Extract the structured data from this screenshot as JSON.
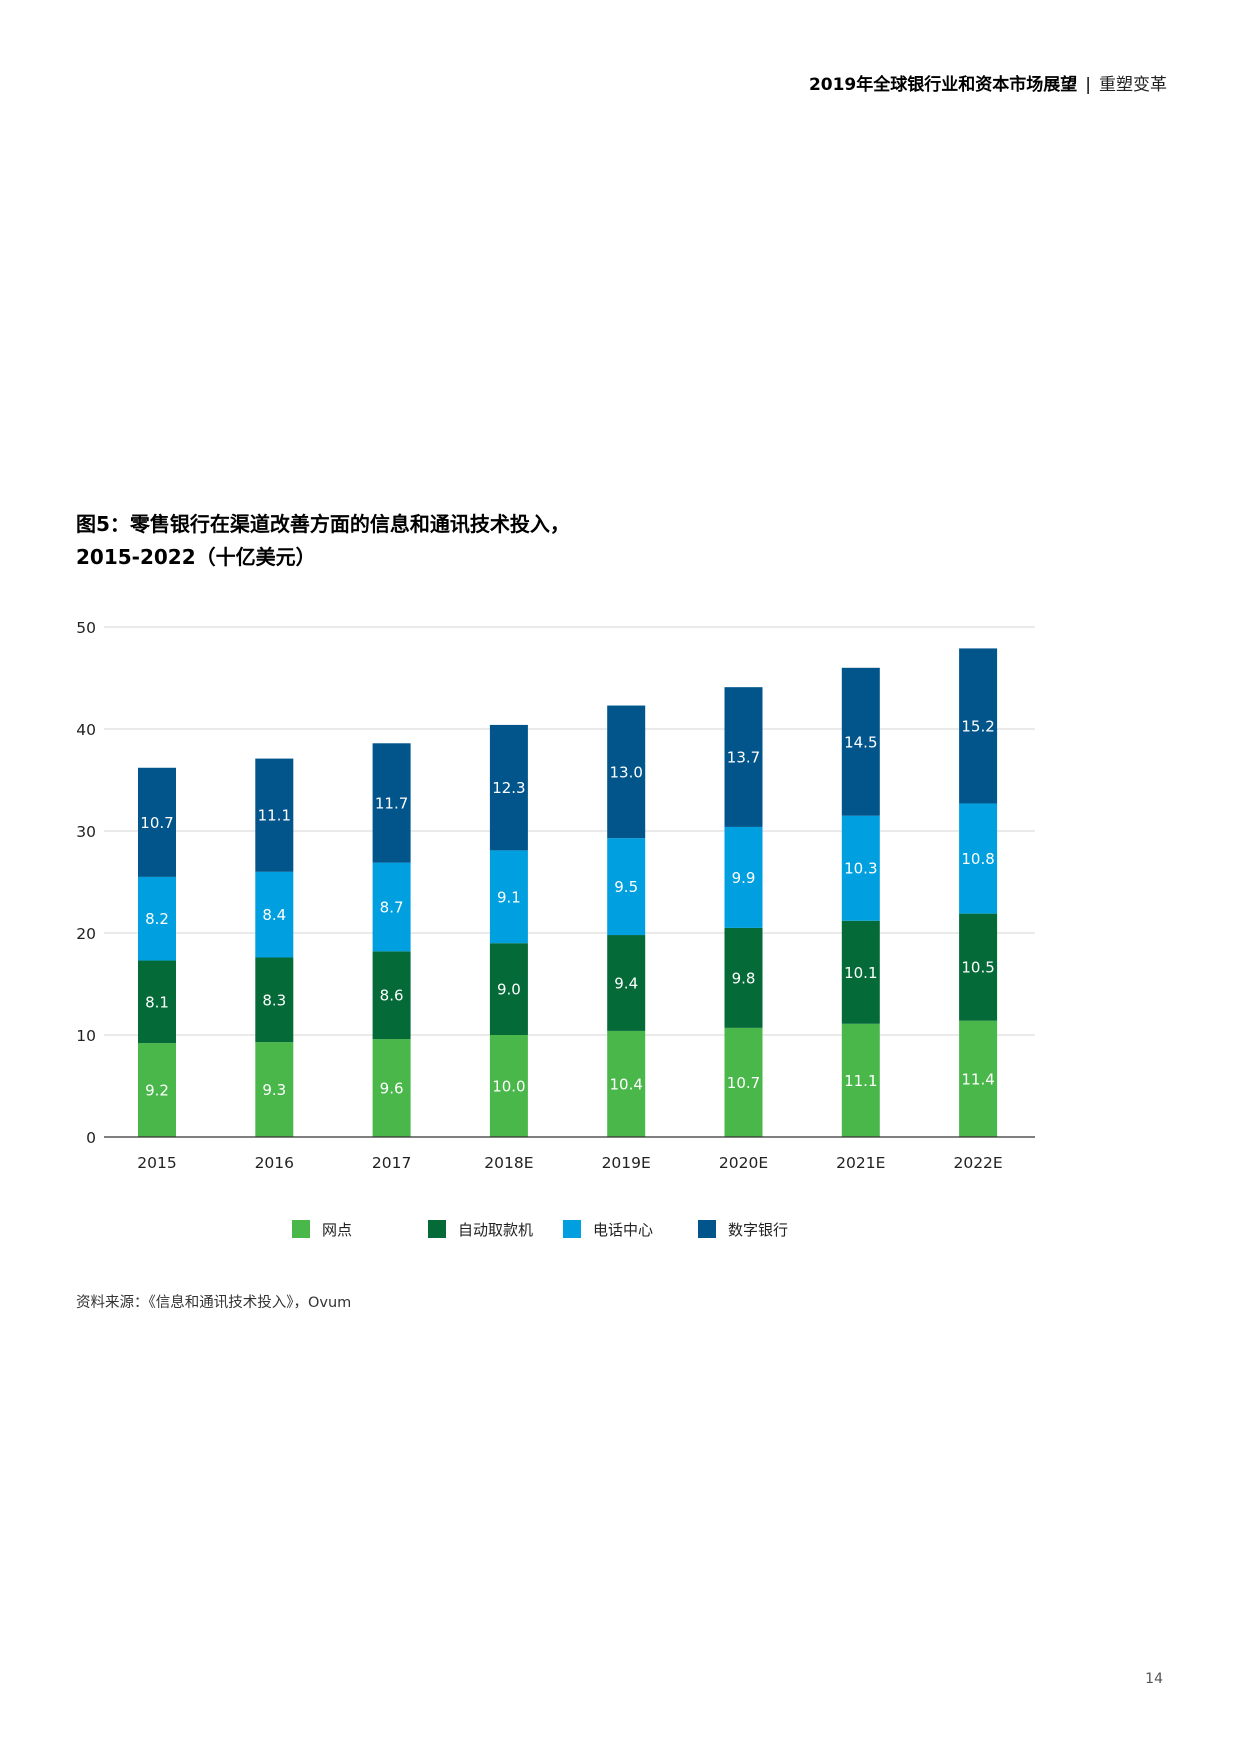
{
  "header": {
    "title": "2019年全球银行业和资本市场展望",
    "separator": "|",
    "subtitle": "重塑变革"
  },
  "figure": {
    "title_line1": "图5：零售银行在渠道改善方面的信息和通讯技术投入，",
    "title_line2": "2015-2022（十亿美元）"
  },
  "chart_data": {
    "type": "bar",
    "stacked": true,
    "categories": [
      "2015",
      "2016",
      "2017",
      "2018E",
      "2019E",
      "2020E",
      "2021E",
      "2022E"
    ],
    "series": [
      {
        "name": "网点",
        "color": "#4ab74a",
        "values": [
          9.2,
          9.3,
          9.6,
          10.0,
          10.4,
          10.7,
          11.1,
          11.4
        ],
        "labels": [
          "9.2",
          "9.3",
          "9.6",
          "10.0",
          "10.4",
          "10.7",
          "11.1",
          "11.4"
        ]
      },
      {
        "name": "自动取款机",
        "color": "#046a38",
        "values": [
          8.1,
          8.3,
          8.6,
          9.0,
          9.4,
          9.8,
          10.1,
          10.5
        ],
        "labels": [
          "8.1",
          "8.3",
          "8.6",
          "9.0",
          "9.4",
          "9.8",
          "10.1",
          "10.5"
        ]
      },
      {
        "name": "电话中心",
        "color": "#009fdf",
        "values": [
          8.2,
          8.4,
          8.7,
          9.1,
          9.5,
          9.9,
          10.3,
          10.8
        ],
        "labels": [
          "8.2",
          "8.4",
          "8.7",
          "9.1",
          "9.5",
          "9.9",
          "10.3",
          "10.8"
        ]
      },
      {
        "name": "数字银行",
        "color": "#01558b",
        "values": [
          10.7,
          11.1,
          11.7,
          12.3,
          13.0,
          13.7,
          14.5,
          15.2
        ],
        "labels": [
          "10.7",
          "11.1",
          "11.7",
          "12.3",
          "13.0",
          "13.7",
          "14.5",
          "15.2"
        ]
      }
    ],
    "ylim": [
      0,
      50
    ],
    "yticks": [
      "0",
      "10",
      "20",
      "30",
      "40",
      "50"
    ],
    "grid": true,
    "legend_position": "bottom"
  },
  "source_text": "资料来源：《信息和通讯技术投入》，Ovum",
  "page_number": "14"
}
